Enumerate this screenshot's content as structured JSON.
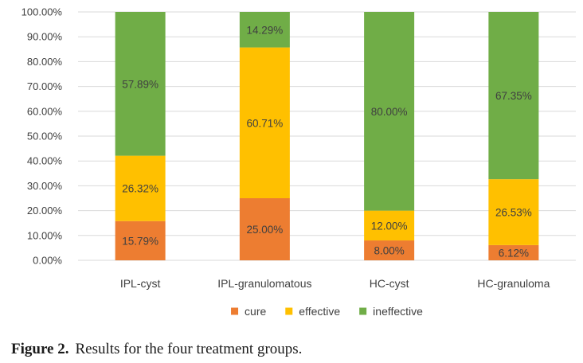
{
  "chart_data": {
    "type": "bar",
    "stacked": true,
    "categories": [
      "IPL-cyst",
      "IPL-granulomatous",
      "HC-cyst",
      "HC-granuloma"
    ],
    "series": [
      {
        "name": "cure",
        "color": "#ED7D31",
        "values": [
          15.79,
          25.0,
          8.0,
          6.12
        ],
        "labels": [
          "15.79%",
          "25.00%",
          "8.00%",
          "6.12%"
        ]
      },
      {
        "name": "effective",
        "color": "#FFC000",
        "values": [
          26.32,
          60.71,
          12.0,
          26.53
        ],
        "labels": [
          "26.32%",
          "60.71%",
          "12.00%",
          "26.53%"
        ]
      },
      {
        "name": "ineffective",
        "color": "#70AD47",
        "values": [
          57.89,
          14.29,
          80.0,
          67.35
        ],
        "labels": [
          "57.89%",
          "14.29%",
          "80.00%",
          "67.35%"
        ]
      }
    ],
    "yticks": [
      "0.00%",
      "10.00%",
      "20.00%",
      "30.00%",
      "40.00%",
      "50.00%",
      "60.00%",
      "70.00%",
      "80.00%",
      "90.00%",
      "100.00%"
    ],
    "ylim": [
      0,
      100
    ],
    "grid": true,
    "legend_position": "bottom"
  },
  "caption": {
    "label": "Figure 2.",
    "text": "Results for the four treatment groups."
  }
}
